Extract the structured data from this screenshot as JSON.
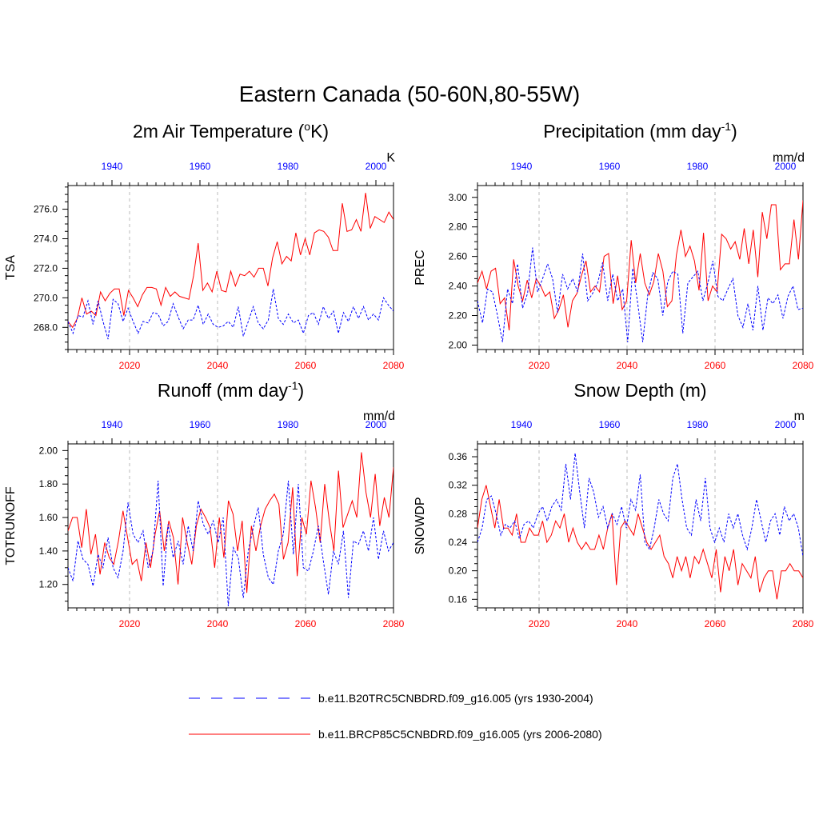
{
  "figure": {
    "title": "Eastern Canada (50-60N,80-55W)",
    "legend": [
      {
        "label": "b.e11.B20TRC5CNBDRD.f09_g16.005 (yrs 1930-2004)",
        "style": "dashed",
        "color": "#0000ff"
      },
      {
        "label": "b.e11.BRCP85C5CNBDRD.f09_g16.005 (yrs 2006-2080)",
        "style": "solid",
        "color": "#ff0000"
      }
    ]
  },
  "chart_data": [
    {
      "type": "line",
      "title": "2m Air Temperature (",
      "title_sup": "o",
      "title_end": "K)",
      "ylabel": "TSA",
      "units": "K",
      "ylim": [
        266.5,
        277.6
      ],
      "yticks": [
        268.0,
        270.0,
        272.0,
        274.0,
        276.0
      ],
      "ytick_labels": [
        "268.0",
        "270.0",
        "272.0",
        "274.0",
        "276.0"
      ],
      "bottom_xlim": [
        2006,
        2080
      ],
      "bottom_xticks": [
        2020,
        2040,
        2060,
        2080
      ],
      "top_xticks": [
        1940,
        1960,
        1980,
        2000
      ],
      "series": [
        {
          "name": "b.e11.BRCP85C5CNBDRD.f09_g16.005",
          "color": "#ff0000",
          "dash": false,
          "values": [
            268.4,
            268.0,
            268.6,
            270.0,
            268.9,
            269.1,
            268.8,
            270.4,
            269.8,
            270.3,
            270.6,
            270.6,
            268.8,
            270.5,
            270.0,
            269.4,
            270.2,
            270.7,
            270.7,
            270.6,
            269.5,
            270.7,
            270.1,
            270.4,
            270.1,
            270.0,
            269.9,
            271.5,
            273.7,
            270.5,
            271.0,
            270.4,
            271.8,
            270.5,
            270.4,
            271.8,
            270.8,
            271.6,
            271.5,
            271.8,
            271.4,
            272.0,
            272.0,
            270.8,
            272.7,
            273.8,
            272.3,
            272.8,
            272.5,
            274.4,
            272.9,
            274.0,
            272.9,
            274.4,
            274.6,
            274.5,
            274.1,
            273.2,
            273.2,
            276.4,
            274.5,
            274.6,
            275.3,
            274.5,
            277.1,
            274.7,
            275.5,
            275.3,
            275.1,
            275.8,
            275.3
          ]
        }
      ],
      "hist_series": [
        {
          "name": "b.e11.B20TRC5CNBDRD.f09_g16.005",
          "color": "#0000ff",
          "dash": true,
          "values": [
            268.4,
            267.6,
            268.8,
            268.7,
            269.8,
            268.2,
            269.8,
            268.4,
            267.2,
            269.9,
            269.6,
            268.4,
            269.3,
            268.4,
            267.6,
            268.4,
            268.3,
            269.0,
            268.9,
            268.1,
            268.4,
            269.6,
            268.7,
            267.9,
            268.5,
            268.5,
            269.5,
            268.2,
            268.9,
            268.2,
            268.0,
            268.1,
            268.4,
            268.0,
            269.4,
            267.4,
            268.4,
            269.4,
            268.3,
            267.9,
            268.5,
            270.6,
            268.6,
            268.2,
            268.9,
            268.3,
            268.5,
            267.6,
            268.8,
            269.0,
            268.2,
            269.4,
            268.6,
            269.1,
            267.6,
            269.0,
            268.4,
            269.4,
            268.6,
            269.4,
            268.5,
            268.9,
            268.5,
            270.0,
            269.5,
            269.1
          ]
        }
      ]
    },
    {
      "type": "line",
      "title": "Precipitation (mm day",
      "title_sup": "-1",
      "title_end": ")",
      "ylabel": "PREC",
      "units": "mm/d",
      "ylim": [
        1.97,
        3.08
      ],
      "yticks": [
        2.0,
        2.2,
        2.4,
        2.6,
        2.8,
        3.0
      ],
      "ytick_labels": [
        "2.00",
        "2.20",
        "2.40",
        "2.60",
        "2.80",
        "3.00"
      ],
      "bottom_xlim": [
        2006,
        2080
      ],
      "bottom_xticks": [
        2020,
        2040,
        2060,
        2080
      ],
      "top_xticks": [
        1940,
        1960,
        1980,
        2000
      ],
      "series": [
        {
          "name": "b.e11.BRCP85C5CNBDRD.f09_g16.005",
          "color": "#ff0000",
          "dash": false,
          "values": [
            2.42,
            2.5,
            2.38,
            2.5,
            2.52,
            2.28,
            2.32,
            2.1,
            2.58,
            2.4,
            2.3,
            2.44,
            2.32,
            2.45,
            2.4,
            2.33,
            2.36,
            2.18,
            2.24,
            2.34,
            2.12,
            2.3,
            2.35,
            2.47,
            2.57,
            2.36,
            2.4,
            2.36,
            2.6,
            2.62,
            2.28,
            2.47,
            2.24,
            2.3,
            2.71,
            2.42,
            2.62,
            2.42,
            2.34,
            2.43,
            2.62,
            2.5,
            2.26,
            2.3,
            2.61,
            2.78,
            2.6,
            2.67,
            2.57,
            2.37,
            2.76,
            2.3,
            2.4,
            2.36,
            2.75,
            2.72,
            2.65,
            2.7,
            2.58,
            2.79,
            2.55,
            2.78,
            2.46,
            2.9,
            2.72,
            2.95,
            2.95,
            2.51,
            2.55,
            2.55,
            2.85,
            2.58,
            2.98
          ]
        }
      ],
      "hist_series": [
        {
          "name": "b.e11.B20TRC5CNBDRD.f09_g16.005",
          "color": "#0000ff",
          "dash": true,
          "values": [
            2.3,
            2.15,
            2.38,
            2.36,
            2.2,
            2.02,
            2.38,
            2.28,
            2.55,
            2.25,
            2.35,
            2.66,
            2.36,
            2.45,
            2.55,
            2.45,
            2.22,
            2.48,
            2.38,
            2.45,
            2.36,
            2.62,
            2.3,
            2.35,
            2.42,
            2.56,
            2.3,
            2.48,
            2.3,
            2.38,
            2.02,
            2.52,
            2.28,
            2.02,
            2.34,
            2.49,
            2.45,
            2.2,
            2.43,
            2.5,
            2.48,
            2.08,
            2.42,
            2.46,
            2.5,
            2.3,
            2.42,
            2.57,
            2.33,
            2.3,
            2.38,
            2.45,
            2.2,
            2.12,
            2.28,
            2.1,
            2.4,
            2.1,
            2.32,
            2.28,
            2.34,
            2.18,
            2.33,
            2.4,
            2.24,
            2.25
          ]
        }
      ]
    },
    {
      "type": "line",
      "title": "Runoff (mm day",
      "title_sup": "-1",
      "title_end": ")",
      "ylabel": "TOTRUNOFF",
      "units": "mm/d",
      "ylim": [
        1.06,
        2.04
      ],
      "yticks": [
        1.2,
        1.4,
        1.6,
        1.8,
        2.0
      ],
      "ytick_labels": [
        "1.20",
        "1.40",
        "1.60",
        "1.80",
        "2.00"
      ],
      "bottom_xlim": [
        2006,
        2080
      ],
      "bottom_xticks": [
        2020,
        2040,
        2060,
        2080
      ],
      "top_xticks": [
        1940,
        1960,
        1980,
        2000
      ],
      "series": [
        {
          "name": "b.e11.BRCP85C5CNBDRD.f09_g16.005",
          "color": "#ff0000",
          "dash": false,
          "values": [
            1.52,
            1.6,
            1.6,
            1.42,
            1.65,
            1.38,
            1.5,
            1.26,
            1.45,
            1.36,
            1.32,
            1.46,
            1.64,
            1.48,
            1.32,
            1.35,
            1.22,
            1.45,
            1.3,
            1.5,
            1.64,
            1.4,
            1.58,
            1.48,
            1.2,
            1.6,
            1.45,
            1.32,
            1.55,
            1.65,
            1.6,
            1.54,
            1.3,
            1.6,
            1.36,
            1.7,
            1.62,
            1.4,
            1.58,
            1.15,
            1.55,
            1.4,
            1.55,
            1.65,
            1.7,
            1.74,
            1.68,
            1.35,
            1.45,
            1.78,
            1.25,
            1.6,
            1.5,
            1.82,
            1.66,
            1.45,
            1.8,
            1.58,
            1.4,
            1.88,
            1.54,
            1.62,
            1.7,
            1.6,
            1.99,
            1.75,
            1.6,
            1.86,
            1.55,
            1.72,
            1.6,
            1.9
          ]
        }
      ],
      "hist_series": [
        {
          "name": "b.e11.B20TRC5CNBDRD.f09_g16.005",
          "color": "#0000ff",
          "dash": true,
          "values": [
            1.3,
            1.22,
            1.46,
            1.35,
            1.32,
            1.19,
            1.38,
            1.3,
            1.48,
            1.3,
            1.24,
            1.4,
            1.69,
            1.5,
            1.45,
            1.52,
            1.3,
            1.4,
            1.82,
            1.19,
            1.56,
            1.36,
            1.46,
            1.32,
            1.55,
            1.4,
            1.7,
            1.56,
            1.5,
            1.58,
            1.45,
            1.6,
            1.07,
            1.42,
            1.36,
            1.12,
            1.4,
            1.54,
            1.66,
            1.38,
            1.24,
            1.2,
            1.4,
            1.5,
            1.82,
            1.38,
            1.8,
            1.3,
            1.28,
            1.4,
            1.55,
            1.34,
            1.14,
            1.4,
            1.32,
            1.52,
            1.12,
            1.46,
            1.44,
            1.52,
            1.4,
            1.6,
            1.35,
            1.52,
            1.4,
            1.45
          ]
        }
      ]
    },
    {
      "type": "line",
      "title": "Snow Depth (m)",
      "title_sup": "",
      "title_end": "",
      "ylabel": "SNOWDP",
      "units": "m",
      "ylim": [
        0.148,
        0.378
      ],
      "yticks": [
        0.16,
        0.2,
        0.24,
        0.28,
        0.32,
        0.36
      ],
      "ytick_labels": [
        "0.16",
        "0.20",
        "0.24",
        "0.28",
        "0.32",
        "0.36"
      ],
      "bottom_xlim": [
        2006,
        2080
      ],
      "bottom_xticks": [
        2020,
        2040,
        2060,
        2080
      ],
      "top_xticks": [
        1940,
        1960,
        1980,
        2000
      ],
      "series": [
        {
          "name": "b.e11.BRCP85C5CNBDRD.f09_g16.005",
          "color": "#ff0000",
          "dash": false,
          "values": [
            0.26,
            0.3,
            0.32,
            0.29,
            0.26,
            0.3,
            0.26,
            0.26,
            0.25,
            0.28,
            0.24,
            0.24,
            0.26,
            0.25,
            0.25,
            0.27,
            0.24,
            0.25,
            0.27,
            0.26,
            0.28,
            0.24,
            0.26,
            0.24,
            0.23,
            0.24,
            0.23,
            0.23,
            0.25,
            0.23,
            0.26,
            0.28,
            0.18,
            0.26,
            0.27,
            0.26,
            0.25,
            0.28,
            0.26,
            0.24,
            0.23,
            0.24,
            0.25,
            0.22,
            0.21,
            0.19,
            0.22,
            0.2,
            0.22,
            0.19,
            0.22,
            0.21,
            0.23,
            0.21,
            0.19,
            0.23,
            0.17,
            0.22,
            0.2,
            0.23,
            0.18,
            0.21,
            0.2,
            0.19,
            0.22,
            0.17,
            0.19,
            0.2,
            0.2,
            0.16,
            0.2,
            0.2,
            0.21,
            0.2,
            0.2,
            0.19
          ]
        }
      ],
      "hist_series": [
        {
          "name": "b.e11.B20TRC5CNBDRD.f09_g16.005",
          "color": "#0000ff",
          "dash": true,
          "values": [
            0.24,
            0.26,
            0.3,
            0.305,
            0.28,
            0.25,
            0.265,
            0.26,
            0.27,
            0.245,
            0.265,
            0.27,
            0.26,
            0.28,
            0.29,
            0.27,
            0.29,
            0.3,
            0.285,
            0.35,
            0.3,
            0.365,
            0.31,
            0.26,
            0.33,
            0.31,
            0.275,
            0.29,
            0.26,
            0.28,
            0.265,
            0.29,
            0.26,
            0.3,
            0.285,
            0.335,
            0.24,
            0.23,
            0.26,
            0.3,
            0.28,
            0.27,
            0.33,
            0.35,
            0.3,
            0.26,
            0.25,
            0.3,
            0.27,
            0.33,
            0.26,
            0.24,
            0.26,
            0.24,
            0.28,
            0.26,
            0.28,
            0.25,
            0.23,
            0.26,
            0.3,
            0.27,
            0.24,
            0.27,
            0.28,
            0.25,
            0.29,
            0.27,
            0.28,
            0.26,
            0.22
          ]
        }
      ]
    }
  ]
}
